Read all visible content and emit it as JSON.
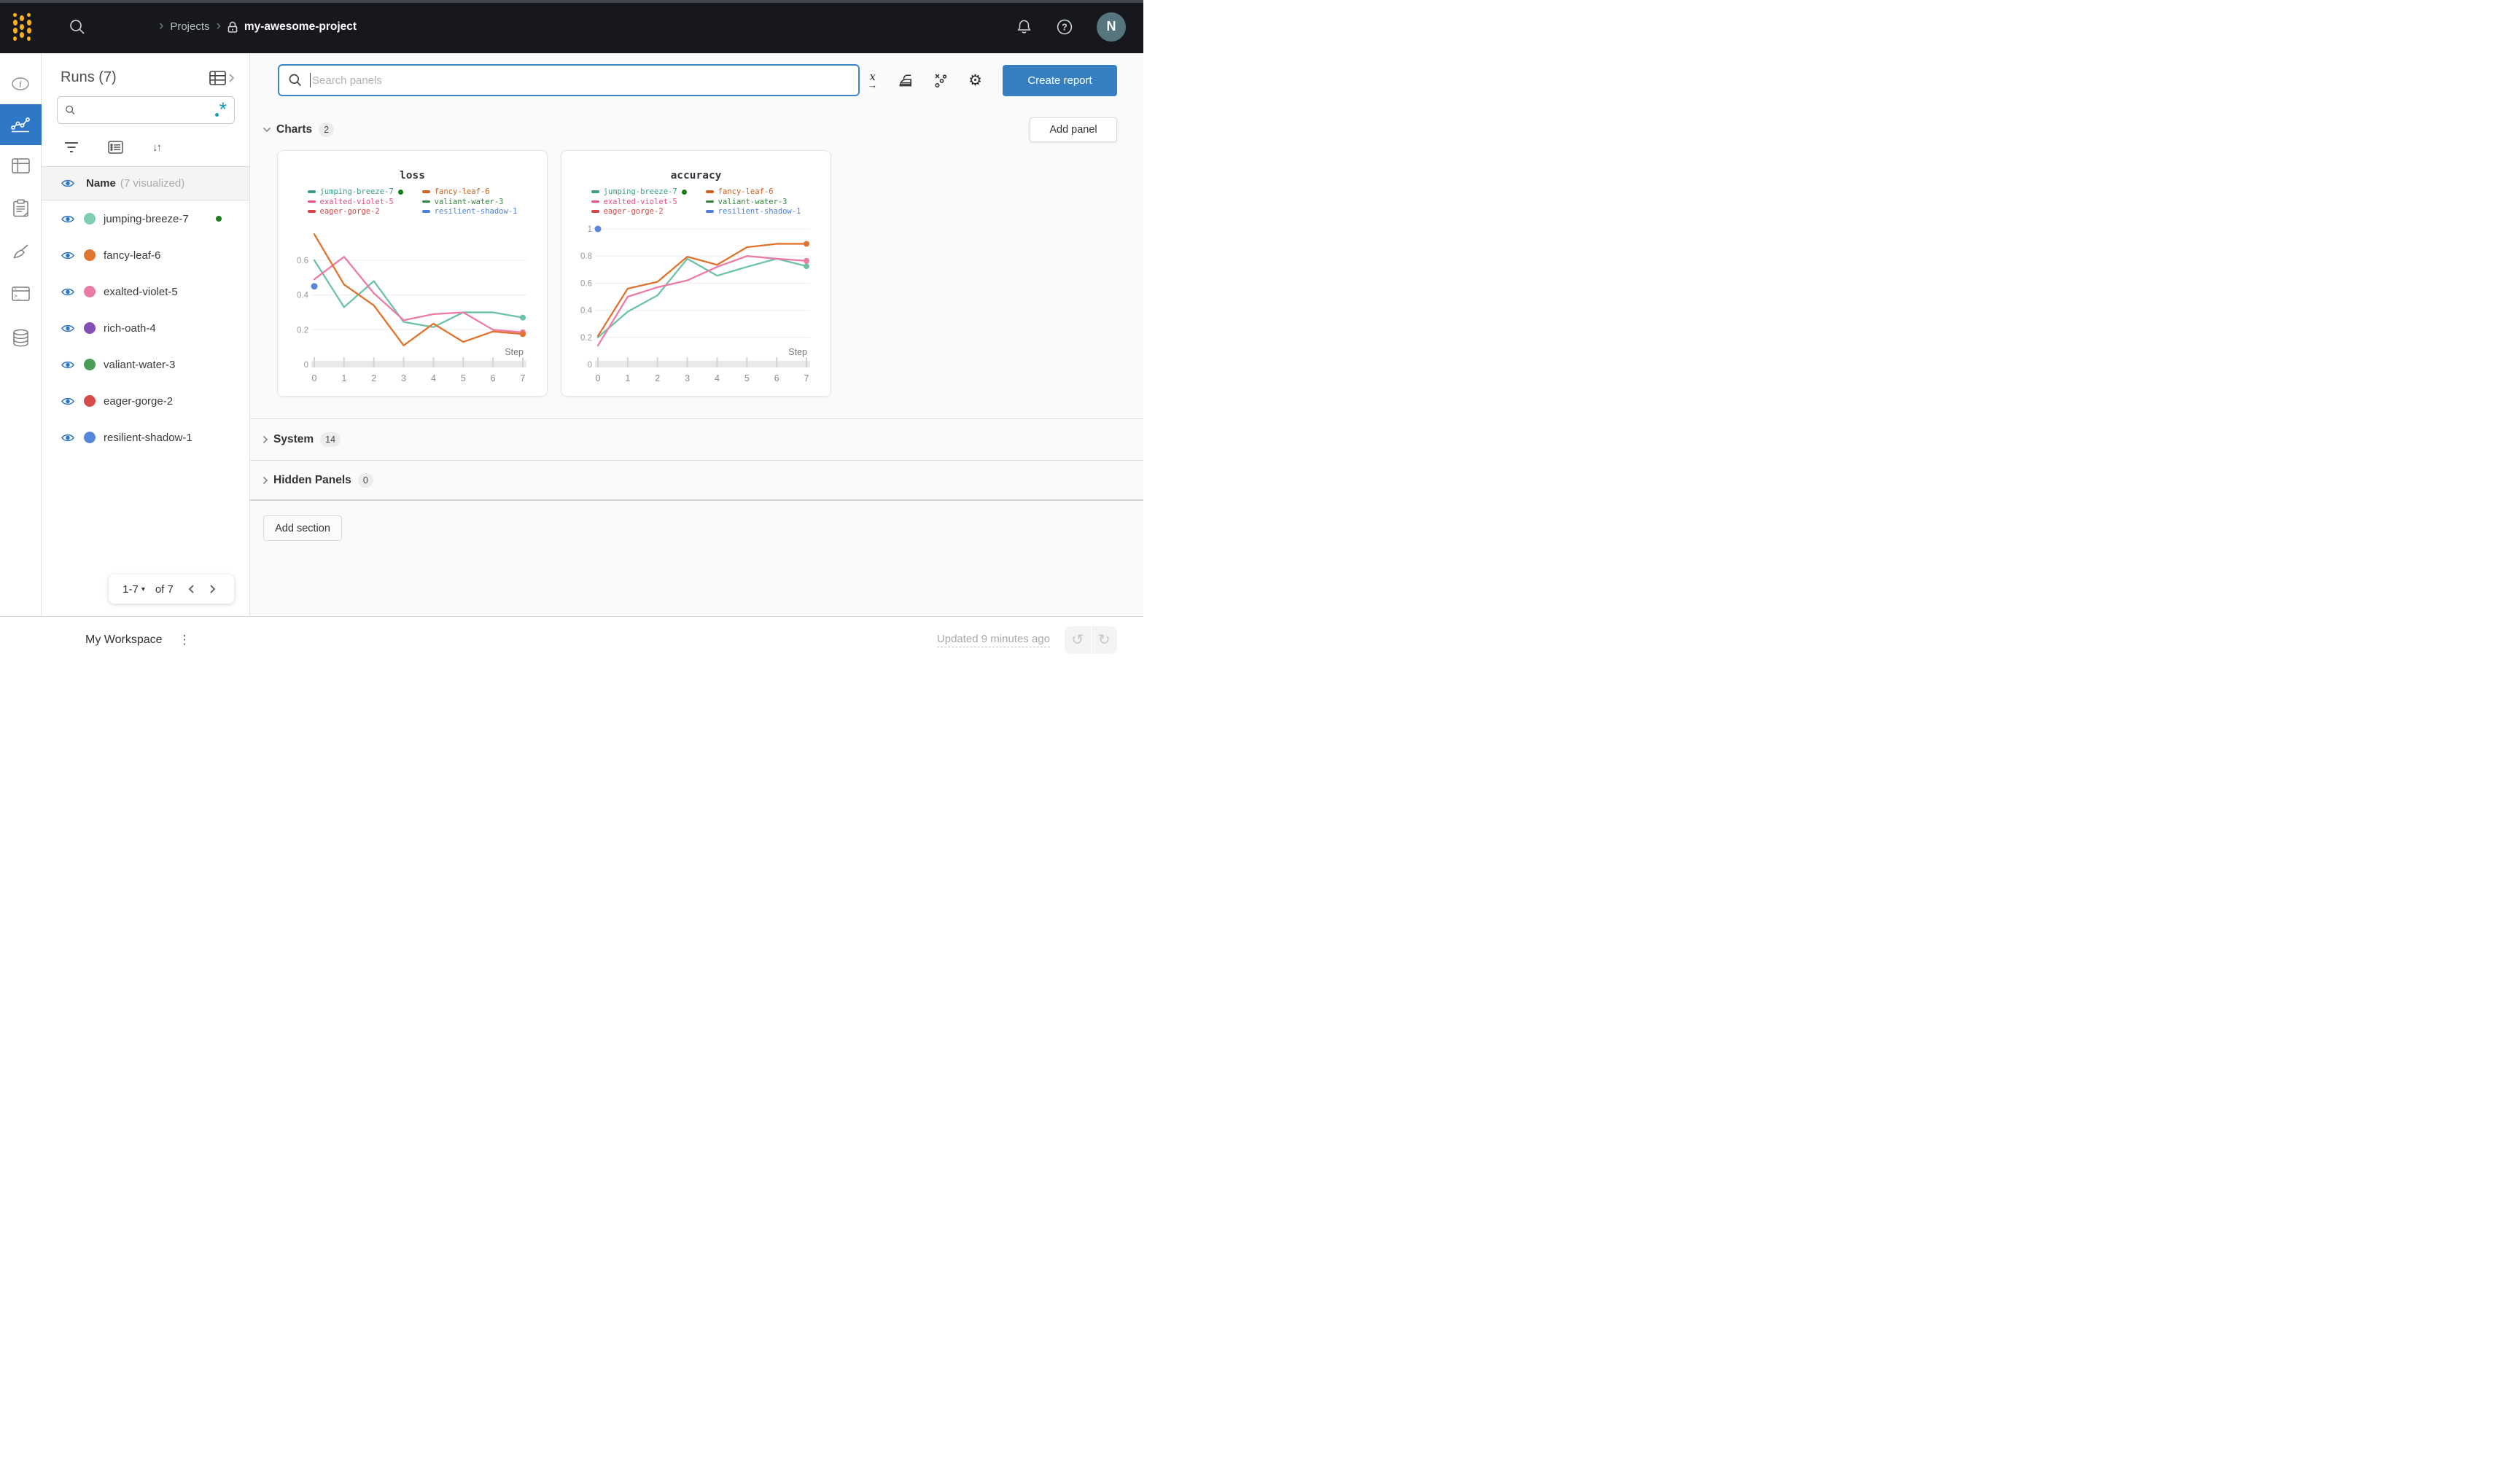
{
  "icons": {
    "gear": "⚙",
    "undo": "↺",
    "redo": "↻",
    "kebab": "⋮",
    "sort": "↓↑",
    "caret_down": "▾",
    "breadcrumb_sep": "›"
  },
  "colors": {
    "accent_blue": "#2e78c7",
    "create_report_blue": "#3680c2",
    "regex_teal": "#0fa0b3",
    "eye_blue": "#2b73c8",
    "status_green": "#1e7e1e",
    "logo_yellow": "#fcb119",
    "avatar_bg": "#56757d"
  },
  "topbar": {
    "breadcrumb": {
      "section": "Projects",
      "project": "my-awesome-project"
    },
    "avatar_initial": "N"
  },
  "runs_panel": {
    "title": "Runs (7)",
    "search_value": "",
    "header": {
      "name": "Name",
      "visualized": "(7 visualized)"
    },
    "runs": [
      {
        "name": "jumping-breeze-7",
        "color": "#7ecdb4",
        "status_dot": true
      },
      {
        "name": "fancy-leaf-6",
        "color": "#e1762f",
        "status_dot": false
      },
      {
        "name": "exalted-violet-5",
        "color": "#ea7ba6",
        "status_dot": false
      },
      {
        "name": "rich-oath-4",
        "color": "#8350b8",
        "status_dot": false
      },
      {
        "name": "valiant-water-3",
        "color": "#4a9d55",
        "status_dot": false
      },
      {
        "name": "eager-gorge-2",
        "color": "#d84b4a",
        "status_dot": false
      },
      {
        "name": "resilient-shadow-1",
        "color": "#5787da",
        "status_dot": false
      }
    ],
    "pagination": {
      "range": "1-7",
      "of": "of 7"
    }
  },
  "main": {
    "search": {
      "placeholder": "Search panels"
    },
    "create_report_label": "Create report",
    "add_panel_label": "Add panel",
    "add_section_label": "Add section",
    "sections": {
      "charts": {
        "label": "Charts",
        "count": "2"
      },
      "system": {
        "label": "System",
        "count": "14"
      },
      "hidden": {
        "label": "Hidden Panels",
        "count": "0"
      }
    }
  },
  "footer": {
    "workspace_label": "My Workspace",
    "updated_label": "Updated 9 minutes ago"
  },
  "chart_data": [
    {
      "type": "line",
      "title": "loss",
      "xlabel": "Step",
      "xticks": [
        0,
        1,
        2,
        3,
        4,
        5,
        6,
        7
      ],
      "yticks": [
        0,
        0.2,
        0.4,
        0.6
      ],
      "ylim": [
        0,
        0.78
      ],
      "grid": true,
      "legend_position": "top",
      "legend": [
        {
          "name": "jumping-breeze-7",
          "color": "#399f8a",
          "status_dot": true
        },
        {
          "name": "fancy-leaf-6",
          "color": "#d2601c",
          "status_dot": false
        },
        {
          "name": "exalted-violet-5",
          "color": "#e84e88",
          "status_dot": false
        },
        {
          "name": "valiant-water-3",
          "color": "#35823e",
          "status_dot": false
        },
        {
          "name": "eager-gorge-2",
          "color": "#d64545",
          "status_dot": false
        },
        {
          "name": "resilient-shadow-1",
          "color": "#4d7fd8",
          "status_dot": false
        }
      ],
      "series": [
        {
          "name": "jumping-breeze-7",
          "color": "#6cc2a8",
          "end_dot": true,
          "values": [
            0.6,
            0.33,
            0.48,
            0.245,
            0.215,
            0.3,
            0.3,
            0.27
          ]
        },
        {
          "name": "exalted-violet-5",
          "color": "#ee7aa8",
          "end_dot": true,
          "values": [
            0.49,
            0.62,
            0.41,
            0.255,
            0.29,
            0.3,
            0.2,
            0.185
          ]
        },
        {
          "name": "fancy-leaf-6",
          "color": "#e0722b",
          "end_dot": true,
          "values": [
            0.75,
            0.46,
            0.34,
            0.11,
            0.235,
            0.13,
            0.19,
            0.175
          ]
        }
      ],
      "points": [
        {
          "name": "resilient-shadow-1",
          "color": "#5a87d8",
          "x": 0,
          "y": 0.45
        }
      ]
    },
    {
      "type": "line",
      "title": "accuracy",
      "xlabel": "Step",
      "xticks": [
        0,
        1,
        2,
        3,
        4,
        5,
        6,
        7
      ],
      "yticks": [
        0,
        0.2,
        0.4,
        0.6,
        0.8,
        1
      ],
      "ylim": [
        0,
        1.0
      ],
      "grid": true,
      "legend_position": "top",
      "legend": [
        {
          "name": "jumping-breeze-7",
          "color": "#399f8a",
          "status_dot": true
        },
        {
          "name": "fancy-leaf-6",
          "color": "#d2601c",
          "status_dot": false
        },
        {
          "name": "exalted-violet-5",
          "color": "#e84e88",
          "status_dot": false
        },
        {
          "name": "valiant-water-3",
          "color": "#35823e",
          "status_dot": false
        },
        {
          "name": "eager-gorge-2",
          "color": "#d64545",
          "status_dot": false
        },
        {
          "name": "resilient-shadow-1",
          "color": "#4d7fd8",
          "status_dot": false
        }
      ],
      "series": [
        {
          "name": "jumping-breeze-7",
          "color": "#6cc2a8",
          "end_dot": true,
          "values": [
            0.2,
            0.39,
            0.51,
            0.78,
            0.655,
            0.72,
            0.78,
            0.725
          ]
        },
        {
          "name": "exalted-violet-5",
          "color": "#ee7aa8",
          "end_dot": true,
          "values": [
            0.14,
            0.5,
            0.57,
            0.62,
            0.72,
            0.8,
            0.78,
            0.765
          ]
        },
        {
          "name": "fancy-leaf-6",
          "color": "#e0722b",
          "end_dot": true,
          "values": [
            0.21,
            0.56,
            0.61,
            0.795,
            0.735,
            0.865,
            0.89,
            0.89
          ]
        }
      ],
      "points": [
        {
          "name": "resilient-shadow-1",
          "color": "#5a87d8",
          "x": 0,
          "y": 1.0
        }
      ]
    }
  ]
}
